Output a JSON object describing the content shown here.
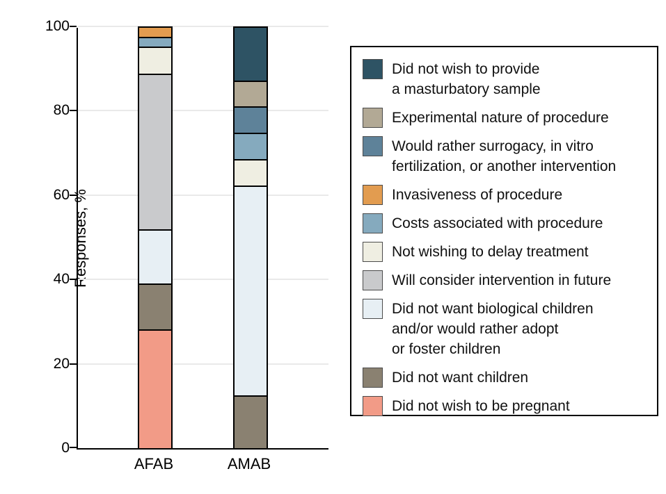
{
  "chart_data": {
    "type": "bar",
    "variant": "stacked-vertical",
    "title": "",
    "ylabel": "Responses, %",
    "xlabel": "",
    "ylim": [
      0,
      100
    ],
    "yticks": [
      0,
      20,
      40,
      60,
      80,
      100
    ],
    "grid": true,
    "gridline_color": "#E9E9E9",
    "axis_color": "#000000",
    "legend_position": "right",
    "categories": [
      "AFAB",
      "AMAB"
    ],
    "series": [
      {
        "name": "Did not wish to provide a masturbatory sample",
        "label_lines": [
          "Did not wish to provide",
          "a masturbatory sample"
        ],
        "color": "#2E5364",
        "values": [
          0,
          12.5
        ]
      },
      {
        "name": "Experimental nature of procedure",
        "label_lines": [
          "Experimental nature of procedure"
        ],
        "color": "#B2A995",
        "values": [
          0,
          6.25
        ]
      },
      {
        "name": "Would rather surrogacy, in vitro fertilization, or another intervention",
        "label_lines": [
          "Would rather surrogacy, in vitro",
          "fertilization, or another intervention"
        ],
        "color": "#5E8299",
        "values": [
          0,
          6.25
        ]
      },
      {
        "name": "Invasiveness of procedure",
        "label_lines": [
          "Invasiveness of procedure"
        ],
        "color": "#E29C50",
        "values": [
          2.2,
          0
        ]
      },
      {
        "name": "Costs associated with procedure",
        "label_lines": [
          "Costs associated with procedure"
        ],
        "color": "#85AABE",
        "values": [
          2.2,
          6.25
        ]
      },
      {
        "name": "Not wishing to delay treatment",
        "label_lines": [
          "Not wishing to delay treatment"
        ],
        "color": "#EFEEE2",
        "values": [
          6.5,
          6.25
        ]
      },
      {
        "name": "Will consider intervention in future",
        "label_lines": [
          "Will consider intervention in future"
        ],
        "color": "#C9CACC",
        "values": [
          37.0,
          0
        ]
      },
      {
        "name": "Did not want biological children and/or would rather adopt or foster children",
        "label_lines": [
          "Did not want biological children",
          "and/or would rather adopt",
          "or foster children"
        ],
        "color": "#E7EFF4",
        "values": [
          13.0,
          50.0
        ]
      },
      {
        "name": "Did not want children",
        "label_lines": [
          "Did not want children"
        ],
        "color": "#8A8171",
        "values": [
          10.9,
          12.5
        ]
      },
      {
        "name": "Did not wish to be pregnant",
        "label_lines": [
          "Did not wish to be pregnant"
        ],
        "color": "#F29B87",
        "values": [
          28.2,
          0
        ]
      }
    ]
  }
}
